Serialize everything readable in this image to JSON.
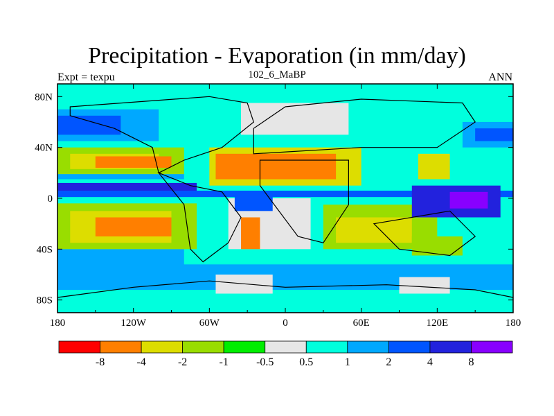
{
  "chart_data": {
    "type": "heatmap",
    "title": "Precipitation - Evaporation (in mm/day)",
    "subtitle_left": "Expt = texpu",
    "subtitle_center": "102_6_MaBP",
    "subtitle_right": "ANN",
    "x_axis": {
      "range": [
        -180,
        180
      ],
      "ticks": [
        -180,
        -120,
        -60,
        0,
        60,
        120,
        180
      ],
      "tick_labels": [
        "180",
        "120W",
        "60W",
        "0",
        "60E",
        "120E",
        "180"
      ]
    },
    "y_axis": {
      "range": [
        -90,
        90
      ],
      "ticks": [
        80,
        40,
        0,
        -40,
        -80
      ],
      "tick_labels": [
        "80N",
        "40N",
        "0",
        "40S",
        "80S"
      ]
    },
    "colorbar": {
      "colors": [
        "#ff0000",
        "#ff7f00",
        "#dddd00",
        "#99dd00",
        "#00ee00",
        "#e6e6e6",
        "#00ffdd",
        "#00a8ff",
        "#0055ff",
        "#2222dd",
        "#8800ff"
      ],
      "labels": [
        "-8",
        "-4",
        "-2",
        "-1",
        "-0.5",
        "0.5",
        "1",
        "2",
        "4",
        "8"
      ]
    },
    "contour_bands": [
      {
        "color_index": 6,
        "lon": [
          -180,
          180
        ],
        "lat": [
          -90,
          90
        ]
      },
      {
        "color_index": 7,
        "lon": [
          -180,
          180
        ],
        "lat": [
          -72,
          -52
        ]
      },
      {
        "color_index": 7,
        "lon": [
          -180,
          -100
        ],
        "lat": [
          45,
          70
        ]
      },
      {
        "color_index": 8,
        "lon": [
          -180,
          -130
        ],
        "lat": [
          50,
          65
        ]
      },
      {
        "color_index": 7,
        "lon": [
          140,
          180
        ],
        "lat": [
          40,
          60
        ]
      },
      {
        "color_index": 8,
        "lon": [
          150,
          180
        ],
        "lat": [
          45,
          55
        ]
      },
      {
        "color_index": 7,
        "lon": [
          -180,
          -80
        ],
        "lat": [
          -55,
          -40
        ]
      },
      {
        "color_index": 7,
        "lon": [
          -180,
          -80
        ],
        "lat": [
          15,
          25
        ]
      },
      {
        "color_index": 3,
        "lon": [
          -180,
          -80
        ],
        "lat": [
          19,
          40
        ]
      },
      {
        "color_index": 2,
        "lon": [
          -170,
          -100
        ],
        "lat": [
          23,
          35
        ]
      },
      {
        "color_index": 1,
        "lon": [
          -150,
          -90
        ],
        "lat": [
          24,
          33
        ]
      },
      {
        "color_index": 9,
        "lon": [
          -180,
          -70
        ],
        "lat": [
          4,
          12
        ]
      },
      {
        "color_index": 8,
        "lon": [
          -180,
          180
        ],
        "lat": [
          1,
          6
        ]
      },
      {
        "color_index": 3,
        "lon": [
          -180,
          -70
        ],
        "lat": [
          -40,
          -4
        ]
      },
      {
        "color_index": 2,
        "lon": [
          -170,
          -90
        ],
        "lat": [
          -35,
          -10
        ]
      },
      {
        "color_index": 1,
        "lon": [
          -150,
          -90
        ],
        "lat": [
          -30,
          -15
        ]
      },
      {
        "color_index": 2,
        "lon": [
          -60,
          60
        ],
        "lat": [
          10,
          40
        ]
      },
      {
        "color_index": 1,
        "lon": [
          -55,
          40
        ],
        "lat": [
          15,
          35
        ]
      },
      {
        "color_index": 5,
        "lon": [
          -45,
          20
        ],
        "lat": [
          -40,
          0
        ]
      },
      {
        "color_index": 8,
        "lon": [
          -40,
          -10
        ],
        "lat": [
          -10,
          5
        ]
      },
      {
        "color_index": 1,
        "lon": [
          -35,
          -20
        ],
        "lat": [
          -40,
          -15
        ]
      },
      {
        "color_index": 3,
        "lon": [
          30,
          120
        ],
        "lat": [
          -40,
          -5
        ]
      },
      {
        "color_index": 2,
        "lon": [
          40,
          100
        ],
        "lat": [
          -35,
          -15
        ]
      },
      {
        "color_index": 9,
        "lon": [
          100,
          170
        ],
        "lat": [
          -15,
          10
        ]
      },
      {
        "color_index": 10,
        "lon": [
          130,
          160
        ],
        "lat": [
          -8,
          5
        ]
      },
      {
        "color_index": 5,
        "lon": [
          -35,
          50
        ],
        "lat": [
          50,
          75
        ]
      },
      {
        "color_index": 5,
        "lon": [
          -55,
          -10
        ],
        "lat": [
          -75,
          -60
        ]
      },
      {
        "color_index": 5,
        "lon": [
          90,
          130
        ],
        "lat": [
          -75,
          -62
        ]
      },
      {
        "color_index": 2,
        "lon": [
          105,
          130
        ],
        "lat": [
          15,
          35
        ]
      },
      {
        "color_index": 3,
        "lon": [
          100,
          140
        ],
        "lat": [
          -45,
          -30
        ]
      }
    ],
    "land_outlines": [
      [
        [
          -170,
          72
        ],
        [
          -60,
          80
        ],
        [
          -30,
          75
        ],
        [
          -25,
          60
        ],
        [
          -50,
          40
        ],
        [
          -80,
          30
        ],
        [
          -100,
          20
        ],
        [
          -105,
          40
        ],
        [
          -135,
          55
        ],
        [
          -170,
          65
        ]
      ],
      [
        [
          -100,
          20
        ],
        [
          -75,
          10
        ],
        [
          -50,
          5
        ],
        [
          -35,
          -15
        ],
        [
          -45,
          -35
        ],
        [
          -65,
          -50
        ],
        [
          -75,
          -40
        ],
        [
          -80,
          -5
        ]
      ],
      [
        [
          -25,
          35
        ],
        [
          60,
          40
        ],
        [
          120,
          40
        ],
        [
          150,
          60
        ],
        [
          140,
          75
        ],
        [
          60,
          78
        ],
        [
          0,
          72
        ],
        [
          -25,
          55
        ]
      ],
      [
        [
          -20,
          30
        ],
        [
          50,
          30
        ],
        [
          50,
          -5
        ],
        [
          30,
          -35
        ],
        [
          10,
          -30
        ],
        [
          -5,
          -10
        ],
        [
          -20,
          10
        ]
      ],
      [
        [
          70,
          -20
        ],
        [
          130,
          -10
        ],
        [
          150,
          -30
        ],
        [
          130,
          -45
        ],
        [
          90,
          -40
        ]
      ],
      [
        [
          -180,
          -78
        ],
        [
          -120,
          -70
        ],
        [
          -60,
          -65
        ],
        [
          0,
          -70
        ],
        [
          80,
          -68
        ],
        [
          150,
          -72
        ],
        [
          180,
          -78
        ],
        [
          180,
          -90
        ],
        [
          -180,
          -90
        ]
      ]
    ]
  }
}
